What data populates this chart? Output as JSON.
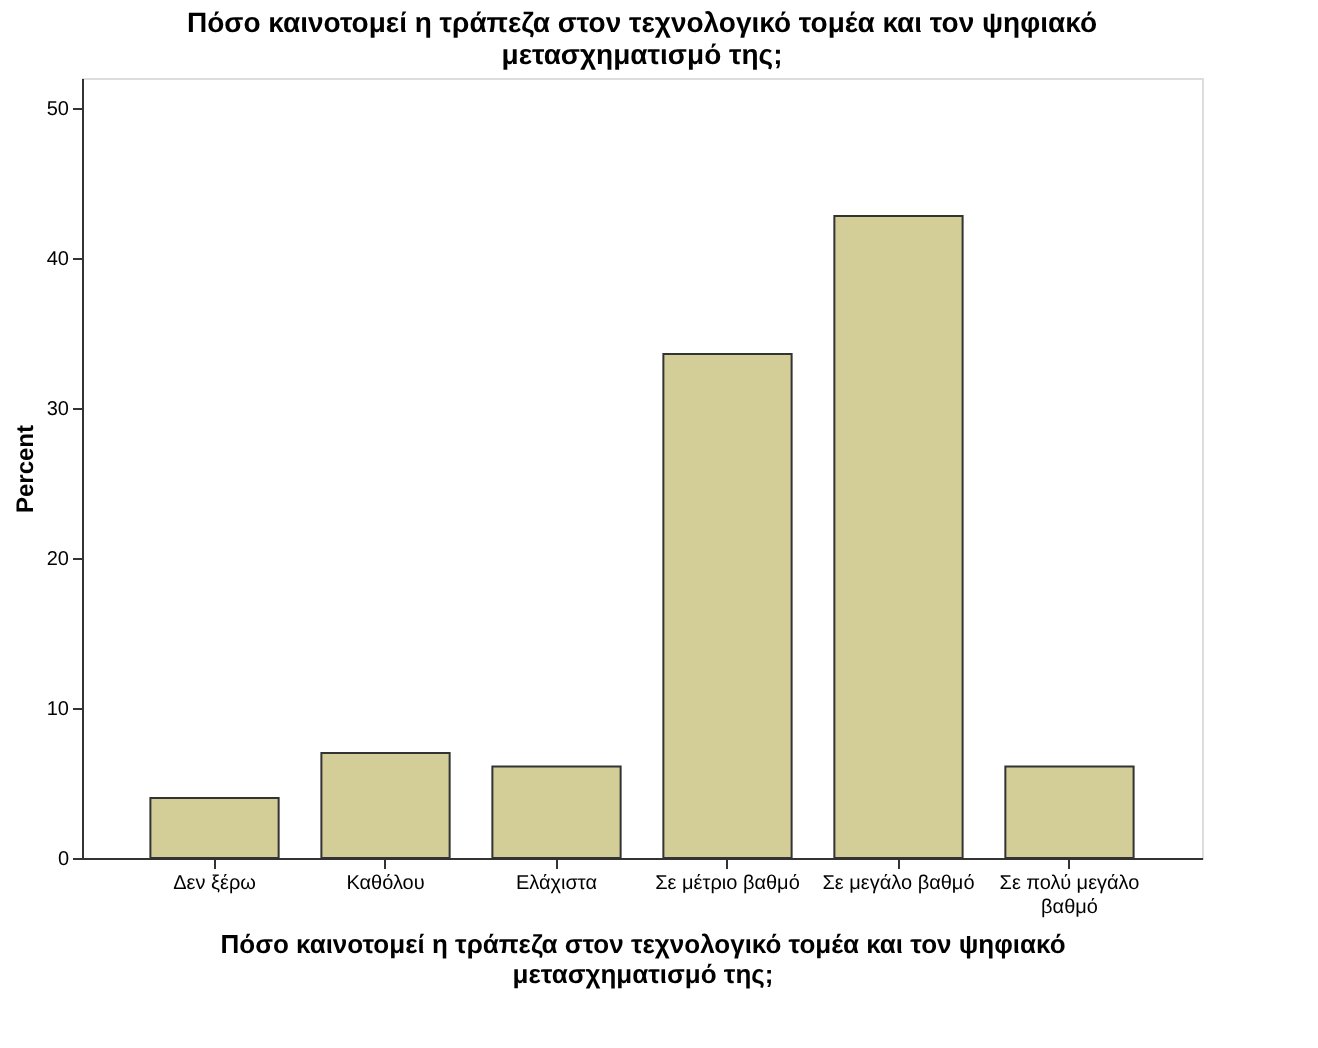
{
  "chart_data": {
    "type": "bar",
    "title": "Πόσο καινοτομεί η τράπεζα στον τεχνολογικό τομέα και τον ψηφιακό μετασχηματισμό της;",
    "xlabel": "Πόσο καινοτομεί η τράπεζα στον τεχνολογικό τομέα και τον ψηφιακό μετασχηματισμό της;",
    "ylabel": "Percent",
    "categories": [
      "Δεν ξέρω",
      "Καθόλου",
      "Ελάχιστα",
      "Σε μέτριο βαθμό",
      "Σε μεγάλο βαθμό",
      "Σε πολύ μεγάλο βαθμό"
    ],
    "values": [
      4.0,
      7.0,
      6.1,
      33.6,
      42.8,
      6.1
    ],
    "color": "#d3ce97",
    "ylim": [
      0,
      52
    ],
    "yticks": [
      0,
      10,
      20,
      30,
      40,
      50
    ],
    "grid": false
  }
}
